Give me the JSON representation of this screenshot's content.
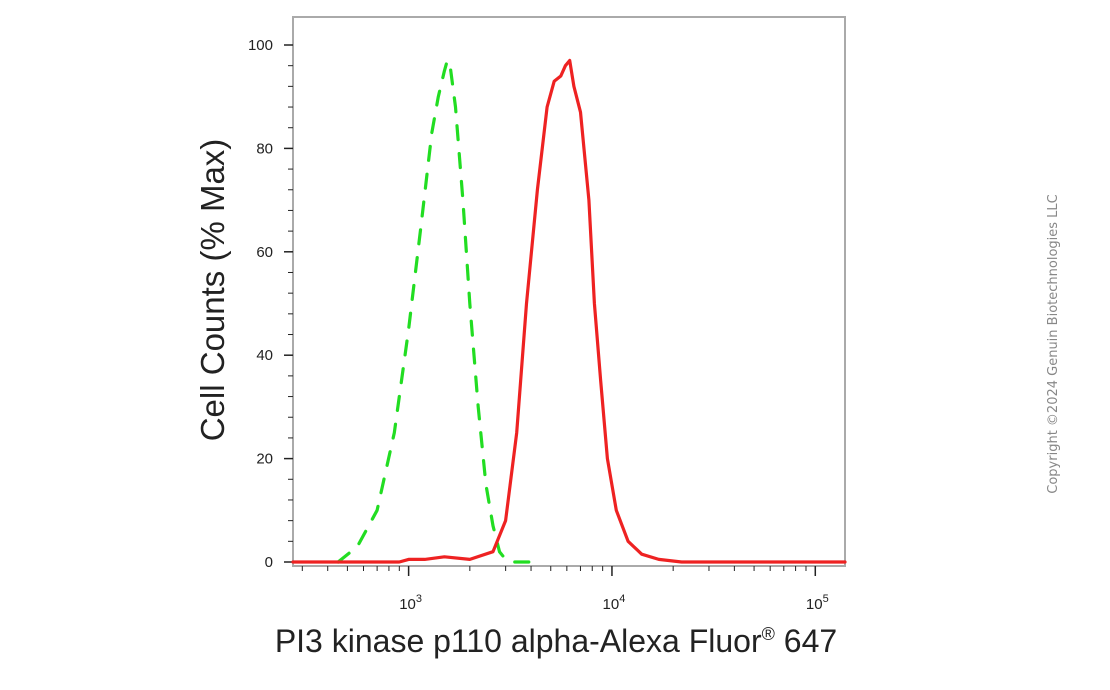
{
  "chart_data": {
    "type": "line",
    "title": "",
    "xlabel": "PI3 kinase p110 alpha-Alexa Fluor",
    "xlabel_reg": "®",
    "xlabel_suffix": " 647",
    "ylabel": "Cell Counts (% Max)",
    "x_scale": "log",
    "xlim": [
      270,
      140000
    ],
    "ylim": [
      0,
      100
    ],
    "yticks": [
      0,
      20,
      40,
      60,
      80,
      100
    ],
    "xticks": [
      {
        "value": 1000,
        "base": "10",
        "exp": "3"
      },
      {
        "value": 10000,
        "base": "10",
        "exp": "4"
      },
      {
        "value": 100000,
        "base": "10",
        "exp": "5"
      }
    ],
    "grid": false,
    "legend": "none",
    "series": [
      {
        "color": "#22dd22",
        "style": "dashed",
        "x": [
          450,
          560,
          700,
          850,
          1000,
          1150,
          1300,
          1400,
          1500,
          1550,
          1600,
          1700,
          1850,
          2000,
          2200,
          2400,
          2600,
          2800,
          3000,
          3300,
          3700,
          4500
        ],
        "y": [
          0,
          3,
          10,
          25,
          45,
          65,
          83,
          90,
          95,
          97,
          96,
          88,
          70,
          50,
          30,
          15,
          7,
          2,
          0.5,
          0,
          0,
          0
        ]
      },
      {
        "color": "#ee2222",
        "style": "solid",
        "x": [
          270,
          700,
          900,
          1000,
          1200,
          1500,
          2000,
          2600,
          3000,
          3400,
          3800,
          4300,
          4800,
          5200,
          5600,
          5900,
          6200,
          6500,
          7000,
          7700,
          8200,
          8800,
          9500,
          10500,
          12000,
          14000,
          17000,
          22000,
          30000,
          60000,
          140000
        ],
        "y": [
          0,
          0,
          0,
          0.5,
          0.5,
          1,
          0.5,
          2,
          8,
          25,
          50,
          72,
          88,
          93,
          94,
          96,
          97,
          92,
          87,
          70,
          50,
          35,
          20,
          10,
          4,
          1.5,
          0.5,
          0,
          0,
          0,
          0
        ]
      }
    ]
  },
  "copyright": "Copyright ©2024 Genuin Biotechnologies LLC"
}
